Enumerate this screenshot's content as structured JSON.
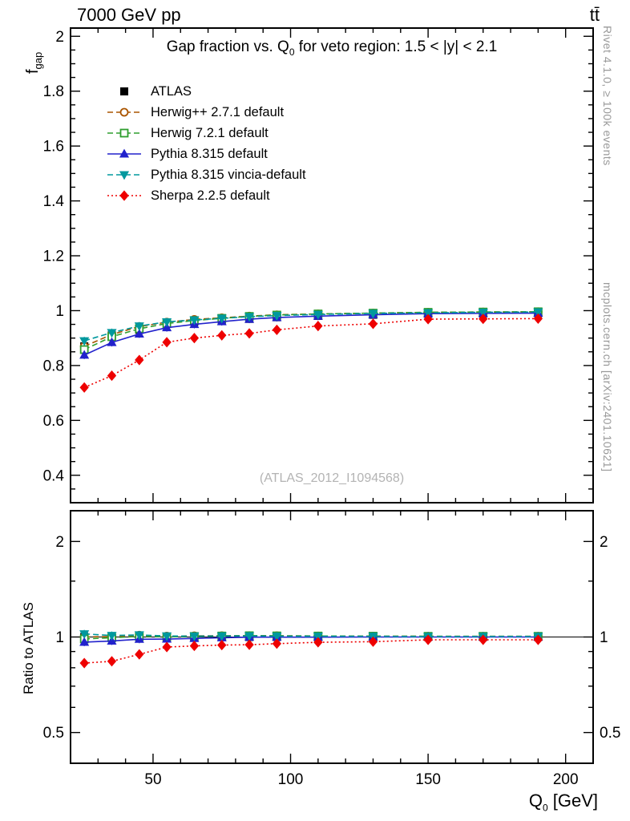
{
  "header": {
    "left_label": "7000 GeV pp",
    "right_label": "tt̄"
  },
  "side_notes": {
    "top": "Rivet 4.1.0, ≥ 100k events",
    "bottom": "mcplots.cern.ch [arXiv:2401.10621]"
  },
  "watermark": "(ATLAS_2012_I1094568)",
  "chart_data": {
    "type": "line",
    "title": "Gap fraction vs. Q_0 for veto region: 1.5 < |y| < 2.1",
    "title_parts": {
      "pre": "Gap fraction vs. Q",
      "sub": "0",
      "post": " for veto region: 1.5 < |y| < 2.1"
    },
    "xlabel": "Q_0 [GeV]",
    "xlabel_parts": {
      "pre": "Q",
      "sub": "0",
      "post": " [GeV]"
    },
    "ylabel": "f_gap",
    "ylabel_parts": {
      "pre": "f",
      "sub": "gap"
    },
    "ratio_ylabel": "Ratio to ATLAS",
    "legend_position": "top-left",
    "grid": false,
    "x": [
      25,
      35,
      45,
      55,
      65,
      75,
      85,
      95,
      110,
      130,
      150,
      170,
      190
    ],
    "xlim": [
      20,
      210
    ],
    "xticks": [
      50,
      100,
      150,
      200
    ],
    "main_ylim": [
      0.3,
      2.03
    ],
    "main_yticks": [
      0.4,
      0.6,
      0.8,
      1,
      1.2,
      1.4,
      1.6,
      1.8,
      2
    ],
    "ratio_ylim": [
      0.4,
      2.5
    ],
    "ratio_scale": "log",
    "ratio_yticks": [
      0.5,
      1,
      2
    ],
    "ratio_yticks_minor": [
      0.4,
      0.6,
      0.7,
      0.8,
      0.9,
      1.5
    ],
    "series": [
      {
        "name": "ATLAS",
        "color": "#000000",
        "marker": "square-filled",
        "line": "none",
        "values": [
          0.87,
          0.91,
          0.93,
          0.952,
          0.96,
          0.965,
          0.97,
          0.976,
          0.981,
          0.985,
          0.989,
          0.99,
          0.991
        ]
      },
      {
        "name": "Herwig++ 2.7.1 default",
        "color": "#aa5500",
        "marker": "circle-open",
        "line": "dashed",
        "values": [
          0.87,
          0.913,
          0.942,
          0.958,
          0.968,
          0.974,
          0.98,
          0.985,
          0.988,
          0.991,
          0.994,
          0.995,
          0.996
        ]
      },
      {
        "name": "Herwig 7.2.1 default",
        "color": "#2e9e2e",
        "marker": "square-open",
        "line": "dashed",
        "values": [
          0.858,
          0.905,
          0.934,
          0.953,
          0.964,
          0.972,
          0.979,
          0.984,
          0.988,
          0.991,
          0.994,
          0.995,
          0.996
        ]
      },
      {
        "name": "Pythia 8.315 default",
        "color": "#2222cc",
        "marker": "triangle-up-filled",
        "line": "solid",
        "values": [
          0.838,
          0.884,
          0.915,
          0.938,
          0.95,
          0.96,
          0.969,
          0.975,
          0.98,
          0.985,
          0.989,
          0.99,
          0.991
        ]
      },
      {
        "name": "Pythia 8.315 vincia-default",
        "color": "#00989e",
        "marker": "triangle-down-filled",
        "line": "dashed",
        "values": [
          0.89,
          0.92,
          0.944,
          0.959,
          0.966,
          0.972,
          0.978,
          0.982,
          0.986,
          0.99,
          0.992,
          0.994,
          0.995
        ]
      },
      {
        "name": "Sherpa 2.2.5 default",
        "color": "#ee0000",
        "marker": "diamond-filled",
        "line": "dotted",
        "values": [
          0.72,
          0.763,
          0.82,
          0.885,
          0.9,
          0.91,
          0.917,
          0.93,
          0.944,
          0.952,
          0.969,
          0.97,
          0.971
        ]
      }
    ]
  }
}
